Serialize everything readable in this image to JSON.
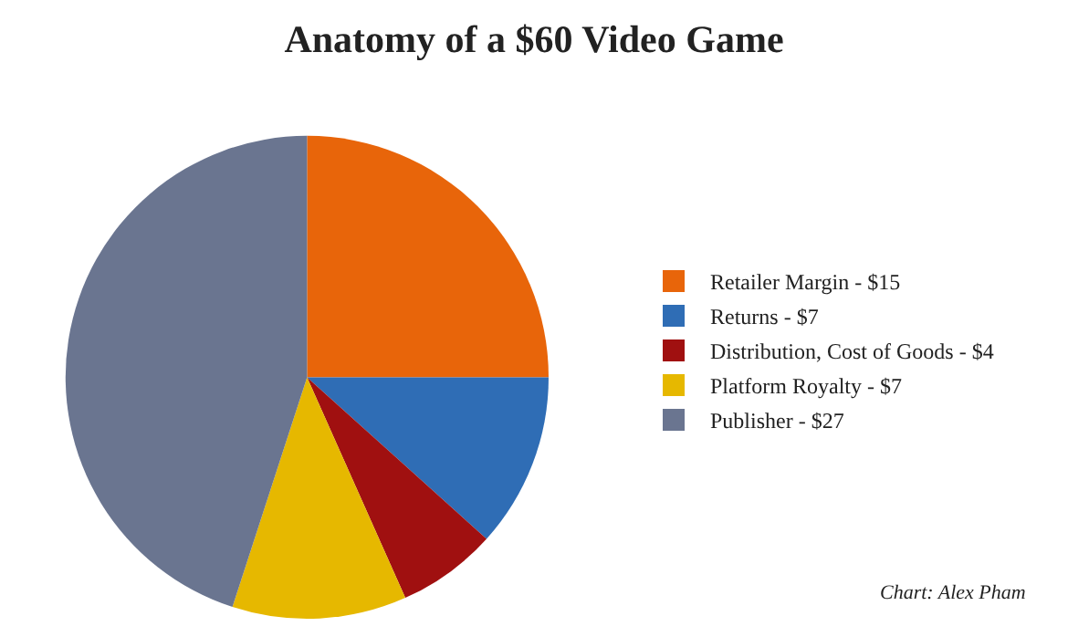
{
  "chart_data": {
    "type": "pie",
    "title": "Anatomy of a $60 Video Game",
    "categories": [
      "Retailer Margin",
      "Returns",
      "Distribution, Cost of Goods",
      "Platform Royalty",
      "Publisher"
    ],
    "values": [
      15,
      7,
      4,
      7,
      27
    ],
    "value_labels": [
      "$15",
      "$7",
      "$4",
      "$7",
      "$27"
    ],
    "colors": [
      "#e8650a",
      "#2f6db5",
      "#a01010",
      "#e6b800",
      "#6a7590"
    ],
    "legend": "right",
    "annotations": [
      "Chart: Alex Pham"
    ]
  }
}
